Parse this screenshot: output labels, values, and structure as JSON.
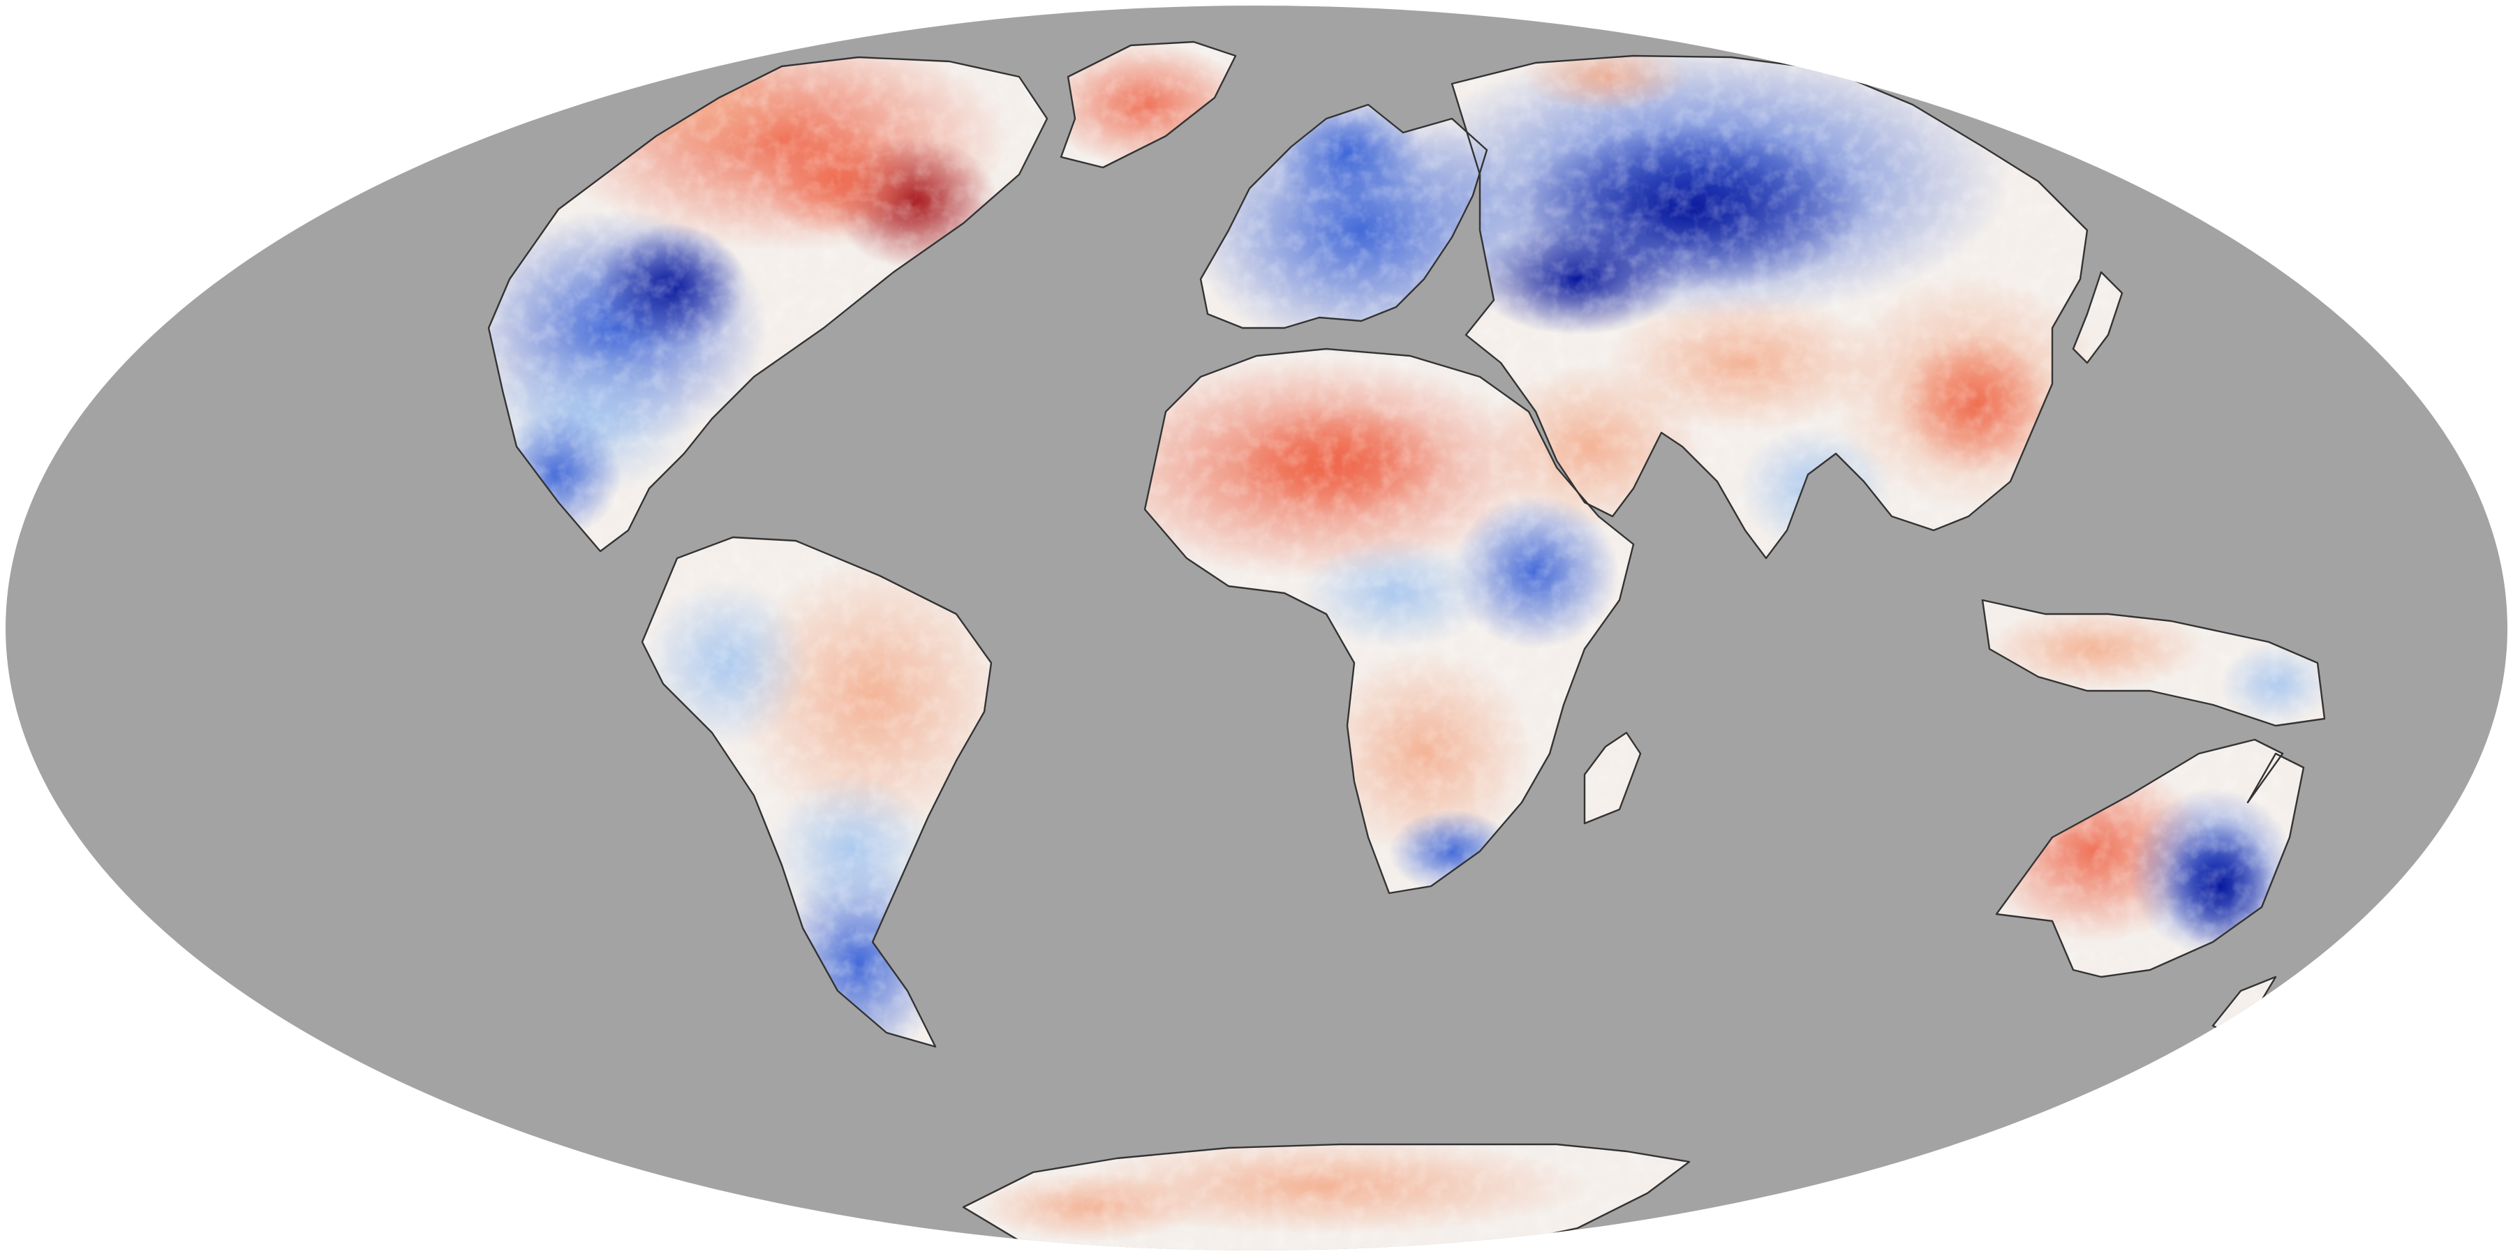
{
  "map": {
    "projection": "mollweide",
    "colors": {
      "background": "#ffffff",
      "ocean": "#a3a3a3",
      "coastline": "#333333",
      "strong_warm": "#a50f15",
      "warm": "#ef6548",
      "light_warm": "#fdd9c4",
      "neutral": "#f7f7f7",
      "light_cool": "#c6dbef",
      "cool": "#3a63d8",
      "strong_cool": "#08189c"
    }
  }
}
